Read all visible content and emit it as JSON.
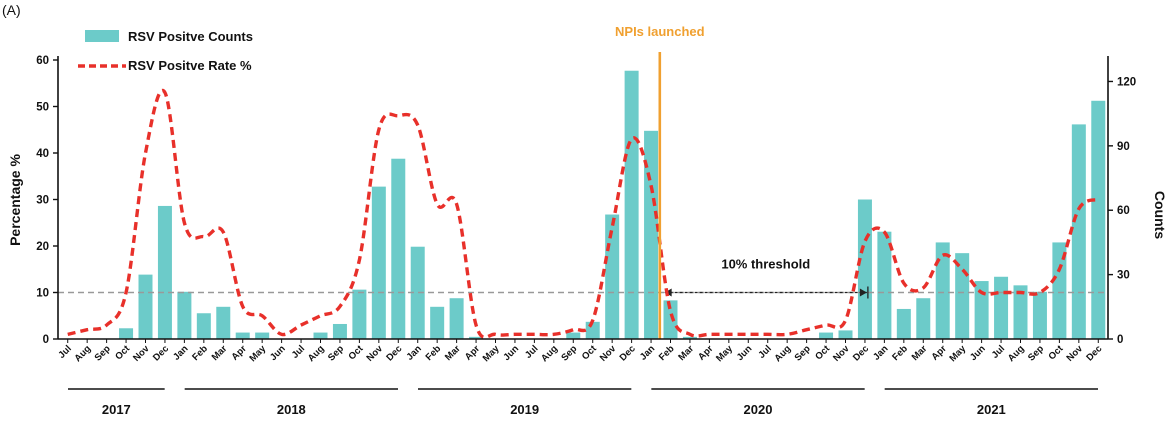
{
  "chart_data": {
    "type": "bar+line",
    "panel_label": "(A)",
    "categories": [
      "Jul",
      "Aug",
      "Sep",
      "Oct",
      "Nov",
      "Dec",
      "Jan",
      "Feb",
      "Mar",
      "Apr",
      "May",
      "Jun",
      "Jul",
      "Aug",
      "Sep",
      "Oct",
      "Nov",
      "Dec",
      "Jan",
      "Feb",
      "Mar",
      "Apr",
      "May",
      "Jun",
      "Jul",
      "Aug",
      "Sep",
      "Oct",
      "Nov",
      "Dec",
      "Jan",
      "Feb",
      "Mar",
      "Apr",
      "May",
      "Jun",
      "Jul",
      "Aug",
      "Sep",
      "Oct",
      "Nov",
      "Dec",
      "Jan",
      "Feb",
      "Mar",
      "Apr",
      "May",
      "Jun",
      "Jul",
      "Aug",
      "Sep",
      "Oct",
      "Nov",
      "Dec"
    ],
    "years": [
      {
        "label": "2017",
        "start": 0,
        "end": 5
      },
      {
        "label": "2018",
        "start": 6,
        "end": 17
      },
      {
        "label": "2019",
        "start": 18,
        "end": 29
      },
      {
        "label": "2020",
        "start": 30,
        "end": 41
      },
      {
        "label": "2021",
        "start": 42,
        "end": 53
      }
    ],
    "series": [
      {
        "name": "RSV Positve Counts",
        "type": "bar",
        "axis": "right",
        "color": "#6ccbc9",
        "values": [
          0,
          0,
          0,
          5,
          30,
          62,
          22,
          12,
          15,
          3,
          3,
          0,
          0,
          3,
          7,
          23,
          71,
          84,
          43,
          15,
          19,
          1,
          0,
          0,
          0,
          0,
          3,
          8,
          58,
          125,
          97,
          18,
          1,
          0,
          0,
          0,
          0,
          0,
          0,
          3,
          4,
          65,
          50,
          14,
          19,
          45,
          40,
          27,
          29,
          25,
          22,
          45,
          100,
          111
        ]
      },
      {
        "name": "RSV Positve Rate %",
        "type": "line",
        "axis": "left",
        "color": "#e8302a",
        "dashed": true,
        "values": [
          1,
          2,
          3,
          10,
          40,
          53,
          25,
          22,
          23,
          7,
          5,
          1,
          3,
          5,
          7,
          17,
          45,
          48,
          46,
          29,
          29,
          3,
          1,
          1,
          1,
          1,
          2,
          4,
          24,
          43,
          33,
          6,
          1,
          1,
          1,
          1,
          1,
          1,
          2,
          3,
          4,
          21,
          23,
          12,
          11,
          18,
          15,
          10,
          10,
          10,
          10,
          15,
          28,
          30
        ]
      }
    ],
    "ylabel": "Percentage %",
    "ylim": [
      0,
      60
    ],
    "yticks": [
      0,
      10,
      20,
      30,
      40,
      50,
      60
    ],
    "y2label": "Counts",
    "y2lim": [
      0,
      130
    ],
    "y2ticks": [
      0,
      30,
      60,
      90,
      120
    ],
    "threshold": {
      "value": 10,
      "label": "10% threshold",
      "color": "#999999",
      "arrow_from": "Jan",
      "arrow_to": "Nov",
      "arrow_year": "2020"
    },
    "event_line": {
      "label": "NPIs launched",
      "color": "#f0a030",
      "between_index": [
        30,
        31
      ]
    },
    "legend_position": "top-left",
    "grid": false
  }
}
